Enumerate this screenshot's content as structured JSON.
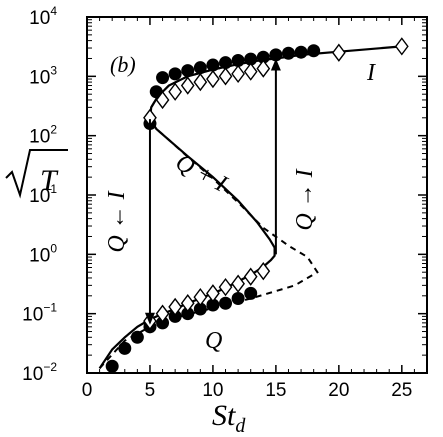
{
  "chart_data": {
    "type": "line",
    "panel_label": "(b)",
    "xlabel": "St",
    "xlabel_sub": "d",
    "ylabel": "√T",
    "xlim": [
      0,
      27
    ],
    "ylim": [
      0.01,
      10000
    ],
    "yscale": "log",
    "x_ticks": [
      0,
      5,
      10,
      15,
      20,
      25
    ],
    "y_ticks": [
      {
        "value": 0.01,
        "base": "10",
        "exp": "−2"
      },
      {
        "value": 0.1,
        "base": "10",
        "exp": "−1"
      },
      {
        "value": 1,
        "base": "10",
        "exp": "0"
      },
      {
        "value": 10,
        "base": "10",
        "exp": "1"
      },
      {
        "value": 100,
        "base": "10",
        "exp": "2"
      },
      {
        "value": 1000,
        "base": "10",
        "exp": "3"
      },
      {
        "value": 10000,
        "base": "10",
        "exp": "4"
      }
    ],
    "annotations": {
      "I": "I",
      "Q": "Q",
      "QI": "Q + I",
      "QtoI": "Q → I",
      "ItoQ": "Q ← I"
    },
    "series": [
      {
        "style": "solid",
        "points": [
          [
            1.0,
            0.012
          ],
          [
            2,
            0.025
          ],
          [
            3,
            0.04
          ],
          [
            4,
            0.06
          ],
          [
            5,
            0.08
          ],
          [
            6,
            0.1
          ],
          [
            7,
            0.12
          ],
          [
            8,
            0.15
          ],
          [
            9,
            0.18
          ],
          [
            10,
            0.22
          ],
          [
            11,
            0.27
          ],
          [
            12,
            0.35
          ],
          [
            13,
            0.45
          ],
          [
            14,
            0.62
          ],
          [
            14.6,
            0.8
          ],
          [
            14.9,
            0.95
          ],
          [
            14.9,
            1.3
          ],
          [
            14.5,
            1.8
          ],
          [
            13.5,
            3.5
          ],
          [
            12,
            8
          ],
          [
            10,
            20
          ],
          [
            8,
            45
          ],
          [
            6.5,
            85
          ],
          [
            5.5,
            130
          ],
          [
            5.0,
            190
          ],
          [
            5.1,
            300
          ],
          [
            5.6,
            450
          ],
          [
            6.5,
            700
          ],
          [
            8,
            1000
          ],
          [
            10,
            1300
          ],
          [
            12,
            1600
          ],
          [
            14,
            1900
          ],
          [
            15,
            2000
          ],
          [
            17,
            2300
          ],
          [
            20,
            2600
          ],
          [
            25,
            3200
          ]
        ]
      },
      {
        "style": "dashed",
        "points": [
          [
            1.0,
            0.012
          ],
          [
            3,
            0.035
          ],
          [
            5,
            0.06
          ],
          [
            7,
            0.085
          ],
          [
            9,
            0.11
          ],
          [
            11,
            0.14
          ],
          [
            13,
            0.18
          ],
          [
            15,
            0.24
          ],
          [
            16.5,
            0.3
          ],
          [
            18.3,
            0.5
          ],
          [
            17.5,
            0.9
          ],
          [
            16,
            1.4
          ],
          [
            14,
            2.8
          ],
          [
            12,
            7.5
          ],
          [
            10,
            19
          ],
          [
            8,
            44
          ],
          [
            6.5,
            85
          ],
          [
            5.5,
            130
          ],
          [
            5.0,
            190
          ],
          [
            5.1,
            300
          ],
          [
            5.6,
            450
          ],
          [
            6.5,
            700
          ],
          [
            8,
            1000
          ],
          [
            10,
            1300
          ],
          [
            12,
            1600
          ],
          [
            14,
            1900
          ],
          [
            15,
            2000
          ]
        ]
      },
      {
        "marker": "filled-circle",
        "points": [
          [
            2,
            0.013
          ],
          [
            3,
            0.026
          ],
          [
            4,
            0.04
          ],
          [
            5,
            0.06
          ],
          [
            6,
            0.07
          ],
          [
            7,
            0.09
          ],
          [
            8,
            0.1
          ],
          [
            9,
            0.12
          ],
          [
            10,
            0.14
          ],
          [
            11,
            0.15
          ],
          [
            12,
            0.18
          ],
          [
            13,
            0.22
          ],
          [
            5,
            160
          ],
          [
            5.5,
            550
          ],
          [
            6,
            950
          ],
          [
            7,
            1100
          ],
          [
            8,
            1250
          ],
          [
            9,
            1400
          ],
          [
            10,
            1550
          ],
          [
            11,
            1700
          ],
          [
            12,
            1850
          ],
          [
            13,
            1950
          ],
          [
            14,
            2100
          ],
          [
            15,
            2300
          ],
          [
            16,
            2450
          ],
          [
            17,
            2550
          ],
          [
            18,
            2700
          ]
        ]
      },
      {
        "marker": "open-diamond",
        "points": [
          [
            5,
            0.075
          ],
          [
            6,
            0.1
          ],
          [
            7,
            0.13
          ],
          [
            8,
            0.15
          ],
          [
            9,
            0.19
          ],
          [
            10,
            0.22
          ],
          [
            11,
            0.28
          ],
          [
            12,
            0.32
          ],
          [
            13,
            0.42
          ],
          [
            14,
            0.52
          ],
          [
            5,
            200
          ],
          [
            6,
            400
          ],
          [
            7,
            550
          ],
          [
            8,
            700
          ],
          [
            9,
            800
          ],
          [
            10,
            900
          ],
          [
            11,
            1000
          ],
          [
            12,
            1100
          ],
          [
            13,
            1200
          ],
          [
            14,
            1350
          ],
          [
            20,
            2500
          ],
          [
            25,
            3200
          ]
        ]
      }
    ],
    "arrows": [
      {
        "x": 5,
        "from": 190,
        "to": 0.065
      },
      {
        "x": 15,
        "from": 1.0,
        "to": 2000
      }
    ]
  }
}
